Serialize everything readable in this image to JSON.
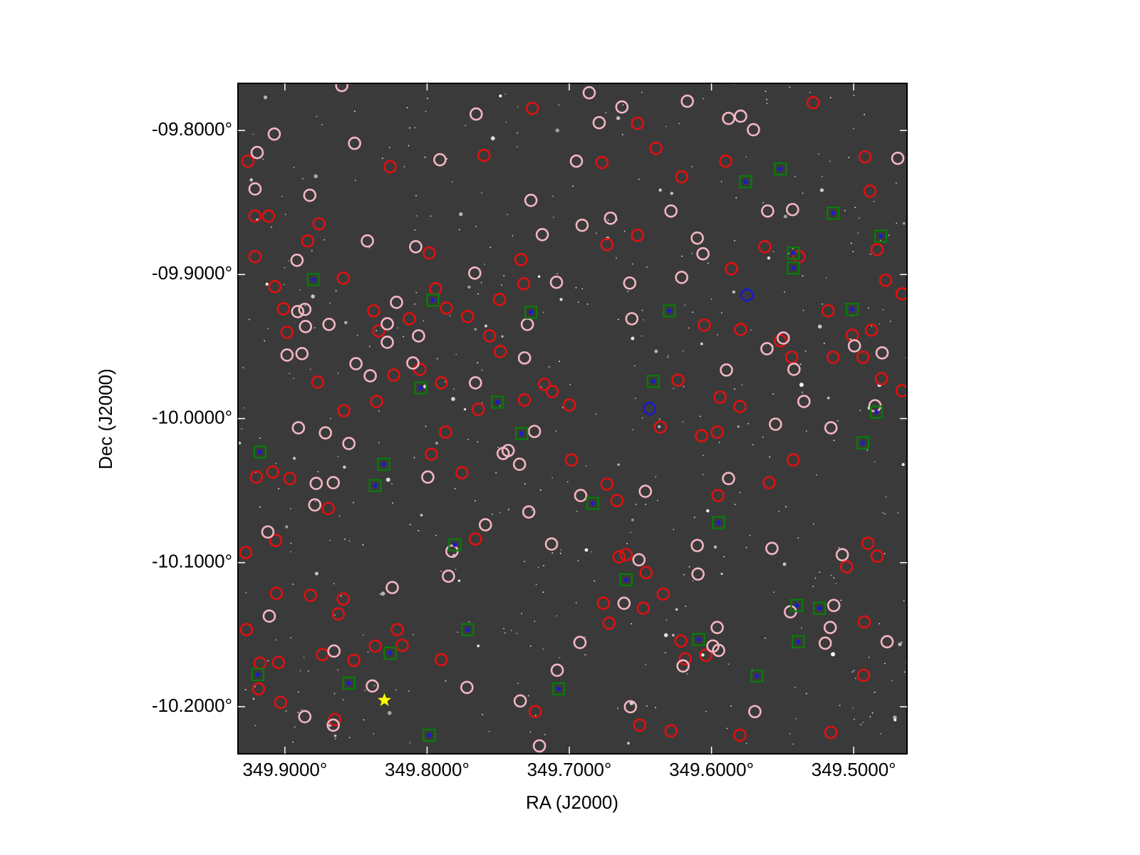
{
  "chart_data": {
    "type": "scatter",
    "x_label": "RA (J2000)",
    "y_label": "Dec (J2000)",
    "xlim": [
      349.933,
      349.4625
    ],
    "ylim": [
      -10.2327,
      -9.7673
    ],
    "xticks": [
      {
        "value": 349.9,
        "label": "349.9000°"
      },
      {
        "value": 349.8,
        "label": "349.8000°"
      },
      {
        "value": 349.7,
        "label": "349.7000°"
      },
      {
        "value": 349.6,
        "label": "349.6000°"
      },
      {
        "value": 349.5,
        "label": "349.5000°"
      }
    ],
    "yticks": [
      {
        "value": -9.8,
        "label": "-09.8000°"
      },
      {
        "value": -9.9,
        "label": "-09.9000°"
      },
      {
        "value": -10.0,
        "label": "-10.0000°"
      },
      {
        "value": -10.1,
        "label": "-10.1000°"
      },
      {
        "value": -10.2,
        "label": "-10.2000°"
      }
    ],
    "background": "#3a3a3a",
    "series": [
      {
        "marker": "circle",
        "color": "#e01010",
        "x": [
          349.926,
          349.826,
          349.76,
          349.726,
          349.677,
          349.652,
          349.639,
          349.621,
          349.59,
          349.5285,
          349.492,
          349.4885,
          349.921,
          349.9115,
          349.876,
          349.884,
          349.921,
          349.907,
          349.859,
          349.901,
          349.8985,
          349.877,
          349.8375,
          349.834,
          349.8235,
          349.8125,
          349.805,
          349.7985,
          349.794,
          349.7865,
          349.7715,
          349.79,
          349.764,
          349.749,
          349.7485,
          349.732,
          349.734,
          349.756,
          349.7315,
          349.7175,
          349.712,
          349.7,
          349.6735,
          349.652,
          349.6235,
          349.605,
          349.607,
          349.596,
          349.58,
          349.594,
          349.586,
          349.5795,
          349.5625,
          349.5515,
          349.5435,
          349.5385,
          349.518,
          349.5145,
          349.501,
          349.4935,
          349.4875,
          349.4805,
          349.4835,
          349.4775,
          349.5425,
          349.5595,
          349.5955,
          349.636,
          349.6985,
          349.766,
          349.7755,
          349.797,
          349.787,
          349.8585,
          349.8355,
          349.92,
          349.9085,
          349.8965,
          349.8695,
          349.9275,
          349.9065,
          349.906,
          349.882,
          349.859,
          349.8625,
          349.927,
          349.9175,
          349.9045,
          349.8735,
          349.8515,
          349.8365,
          349.821,
          349.8175,
          349.79,
          349.903,
          349.865,
          349.9185,
          349.724,
          349.676,
          349.672,
          349.665,
          349.66,
          349.6735,
          349.6665,
          349.648,
          349.646,
          349.634,
          349.6215,
          349.6185,
          349.604,
          349.6505,
          349.6285,
          349.58,
          349.516,
          349.493,
          349.4925,
          349.4835,
          349.505,
          349.49,
          349.466,
          349.466
        ],
        "y": [
          -9.8213,
          -9.8252,
          -9.8173,
          -9.7847,
          -9.8223,
          -9.795,
          -9.8124,
          -9.8322,
          -9.8213,
          -9.7807,
          -9.8183,
          -9.8421,
          -9.8594,
          -9.8594,
          -9.8648,
          -9.8767,
          -9.8876,
          -9.9084,
          -9.9025,
          -9.9238,
          -9.9401,
          -9.9747,
          -9.9252,
          -9.9391,
          -9.9698,
          -9.9307,
          -9.9658,
          -9.8851,
          -9.9099,
          -9.9233,
          -9.9292,
          -9.9752,
          -9.9936,
          -9.9173,
          -9.9535,
          -9.9064,
          -9.8896,
          -9.9426,
          -9.9871,
          -9.9762,
          -9.9812,
          -9.9906,
          -9.8792,
          -9.8728,
          -9.9733,
          -9.9351,
          -10.0119,
          -10.0094,
          -9.9916,
          -9.9851,
          -9.896,
          -9.9381,
          -9.8807,
          -9.946,
          -9.9574,
          -9.8876,
          -9.9252,
          -9.9574,
          -9.9421,
          -9.9574,
          -9.9386,
          -9.9723,
          -9.8827,
          -9.904,
          -10.0287,
          -10.0445,
          -10.0534,
          -10.0059,
          -10.0287,
          -10.0836,
          -10.0376,
          -10.0247,
          -10.0094,
          -9.9945,
          -9.9881,
          -10.0406,
          -10.0371,
          -10.0416,
          -10.0624,
          -10.093,
          -10.0846,
          -10.1213,
          -10.1227,
          -10.1252,
          -10.1356,
          -10.1465,
          -10.1698,
          -10.1693,
          -10.1638,
          -10.1678,
          -10.1579,
          -10.1465,
          -10.1574,
          -10.1673,
          -10.197,
          -10.2089,
          -10.1876,
          -10.2034,
          -10.1282,
          -10.142,
          -10.096,
          -10.0945,
          -10.0455,
          -10.0569,
          -10.1316,
          -10.1069,
          -10.1218,
          -10.1544,
          -10.1668,
          -10.1643,
          -10.2128,
          -10.2168,
          -10.2198,
          -10.2178,
          -10.1782,
          -10.1411,
          -10.0955,
          -10.1029,
          -10.0866,
          -9.9134,
          -9.9807
        ]
      },
      {
        "marker": "circle",
        "color": "#f4b6c2",
        "x": [
          349.86,
          349.9075,
          349.9195,
          349.921,
          349.8825,
          349.851,
          349.842,
          349.808,
          349.8915,
          349.891,
          349.886,
          349.8855,
          349.8985,
          349.888,
          349.869,
          349.85,
          349.84,
          349.828,
          349.828,
          349.8215,
          349.806,
          349.81,
          349.7655,
          349.791,
          349.727,
          349.719,
          349.7665,
          349.709,
          349.7295,
          349.7315,
          349.766,
          349.686,
          349.679,
          349.663,
          349.695,
          349.671,
          349.691,
          349.6575,
          349.656,
          349.617,
          349.6285,
          349.621,
          349.61,
          349.606,
          349.588,
          349.5795,
          349.5705,
          349.5605,
          349.543,
          349.561,
          349.5895,
          349.5495,
          349.542,
          349.535,
          349.4995,
          349.48,
          349.516,
          349.555,
          349.485,
          349.469,
          349.8905,
          349.8715,
          349.855,
          349.878,
          349.866,
          349.879,
          349.912,
          349.911,
          349.8245,
          349.8655,
          349.8385,
          349.886,
          349.866,
          349.7995,
          349.785,
          349.7825,
          349.759,
          349.772,
          349.7465,
          349.743,
          349.735,
          349.7245,
          349.7285,
          349.7125,
          349.692,
          349.7085,
          349.6925,
          349.7345,
          349.721,
          349.6615,
          349.657,
          349.651,
          349.6465,
          349.61,
          349.6095,
          349.596,
          349.599,
          349.595,
          349.62,
          349.588,
          349.5575,
          349.5445,
          349.5695,
          349.52,
          349.5165,
          349.514,
          349.508,
          349.4765
        ],
        "y": [
          -9.7688,
          -9.8025,
          -9.8153,
          -9.8406,
          -9.845,
          -9.8089,
          -9.8767,
          -9.8807,
          -9.8901,
          -9.9257,
          -9.9242,
          -9.9361,
          -9.9559,
          -9.9549,
          -9.9346,
          -9.9619,
          -9.9703,
          -9.9342,
          -9.947,
          -9.9193,
          -9.9426,
          -9.9614,
          -9.7886,
          -9.8203,
          -9.8485,
          -9.8723,
          -9.899,
          -9.9054,
          -9.9346,
          -9.9579,
          -9.9752,
          -9.7738,
          -9.7946,
          -9.7837,
          -9.8213,
          -9.8609,
          -9.8658,
          -9.9059,
          -9.9307,
          -9.7797,
          -9.8559,
          -9.902,
          -9.8747,
          -9.8856,
          -9.7916,
          -9.7901,
          -9.7995,
          -9.8559,
          -9.8549,
          -9.9515,
          -9.9663,
          -9.9441,
          -9.9658,
          -9.9881,
          -9.9495,
          -9.9544,
          -10.0064,
          -10.0039,
          -9.9911,
          -9.8193,
          -10.0064,
          -10.0099,
          -10.0173,
          -10.045,
          -10.0445,
          -10.0599,
          -10.0787,
          -10.1371,
          -10.1173,
          -10.1614,
          -10.1856,
          -10.2069,
          -10.2128,
          -10.0406,
          -10.1094,
          -10.0921,
          -10.0737,
          -10.1866,
          -10.0242,
          -10.0222,
          -10.0317,
          -10.0089,
          -10.0648,
          -10.0871,
          -10.0534,
          -10.1747,
          -10.1554,
          -10.196,
          -10.2272,
          -10.1282,
          -10.2,
          -10.098,
          -10.0505,
          -10.0881,
          -10.1079,
          -10.145,
          -10.1579,
          -10.1609,
          -10.1717,
          -10.0416,
          -10.0901,
          -10.1341,
          -10.2034,
          -10.1559,
          -10.145,
          -10.1297,
          -10.0945,
          -10.1549
        ]
      },
      {
        "marker": "square",
        "color": "#0a7a0a",
        "x": [
          349.88,
          349.796,
          349.8045,
          349.7505,
          349.727,
          349.7335,
          349.6295,
          349.641,
          349.576,
          349.5515,
          349.5145,
          349.5425,
          349.5425,
          349.481,
          349.501,
          349.484,
          349.4935,
          349.595,
          349.9175,
          349.8305,
          349.8365,
          349.7805,
          349.6835,
          349.66,
          349.7715,
          349.826,
          349.919,
          349.855,
          349.7075,
          349.7985,
          349.609,
          349.568,
          349.54,
          349.524,
          349.539
        ],
        "y": [
          -9.9035,
          -9.9178,
          -9.9787,
          -9.9886,
          -9.9262,
          -10.0104,
          -9.9252,
          -9.9742,
          -9.8356,
          -9.8267,
          -9.8574,
          -9.8851,
          -9.8955,
          -9.8733,
          -9.9242,
          -9.9955,
          -10.0168,
          -10.0722,
          -10.0232,
          -10.0317,
          -10.0465,
          -10.0876,
          -10.0589,
          -10.1119,
          -10.1465,
          -10.1628,
          -10.1777,
          -10.1836,
          -10.1876,
          -10.2198,
          -10.1534,
          -10.1787,
          -10.1297,
          -10.1317,
          -10.1549
        ]
      },
      {
        "marker": "circle",
        "color": "#1a1ad0",
        "x": [
          349.575,
          349.6435
        ],
        "y": [
          -9.9143,
          -9.9931
        ]
      },
      {
        "marker": "star",
        "color": "#ffff00",
        "x": [
          349.83
        ],
        "y": [
          -10.1955
        ]
      }
    ]
  }
}
